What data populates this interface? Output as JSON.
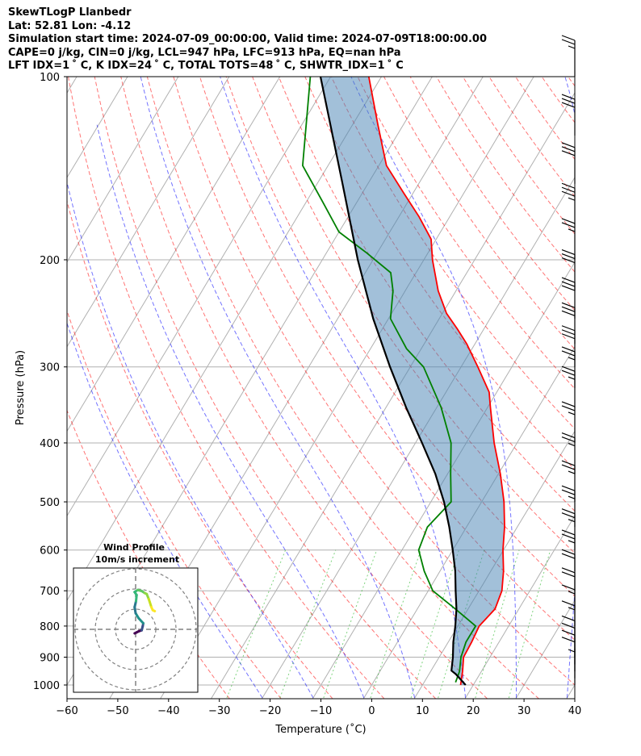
{
  "header": {
    "title": "SkewTLogP Llanbedr",
    "location": "Lat: 52.81   Lon: -4.12",
    "times": "Simulation start time: 2024-07-09_00:00:00, Valid time: 2024-07-09T18:00:00.00",
    "indices1": "CAPE=0 j/kg, CIN=0 j/kg, LCL=947 hPa, LFC=913 hPa, EQ=nan hPa",
    "indices2": "LFT IDX=1 ˚ C, K IDX=24 ˚ C, TOTAL TOTS=48 ˚ C, SHWTR_IDX=1 ˚ C"
  },
  "chart_data": {
    "type": "skewt",
    "title": "SkewTLogP Llanbedr",
    "xlabel": "Temperature (˚C)",
    "ylabel": "Pressure (hPa)",
    "xlim": [
      -60,
      40
    ],
    "ylim": [
      1050,
      100
    ],
    "x_ticks": [
      -60,
      -50,
      -40,
      -30,
      -20,
      -10,
      0,
      10,
      20,
      30,
      40
    ],
    "y_ticks": [
      1000,
      900,
      800,
      700,
      600,
      500,
      400,
      300,
      200,
      100
    ],
    "series": [
      {
        "name": "Temperature",
        "color": "#ff0000",
        "points": [
          [
            1000,
            17.5
          ],
          [
            950,
            16.3
          ],
          [
            900,
            14.8
          ],
          [
            850,
            14.6
          ],
          [
            800,
            14.2
          ],
          [
            750,
            15.3
          ],
          [
            700,
            14.5
          ],
          [
            650,
            12.5
          ],
          [
            600,
            9.9
          ],
          [
            550,
            7.5
          ],
          [
            500,
            4.4
          ],
          [
            450,
            0.4
          ],
          [
            400,
            -4.5
          ],
          [
            350,
            -9.4
          ],
          [
            330,
            -11.5
          ],
          [
            300,
            -16.7
          ],
          [
            275,
            -21.6
          ],
          [
            260,
            -25.2
          ],
          [
            245,
            -29.2
          ],
          [
            225,
            -33.5
          ],
          [
            200,
            -38.3
          ],
          [
            185,
            -41.0
          ],
          [
            170,
            -46.0
          ],
          [
            155,
            -52.0
          ],
          [
            140,
            -58.5
          ],
          [
            120,
            -65.0
          ],
          [
            100,
            -72.5
          ]
        ]
      },
      {
        "name": "Dewpoint",
        "color": "#008000",
        "points": [
          [
            990,
            16.2
          ],
          [
            950,
            15.7
          ],
          [
            900,
            14.3
          ],
          [
            850,
            13.5
          ],
          [
            800,
            13.5
          ],
          [
            750,
            7.5
          ],
          [
            700,
            0.9
          ],
          [
            650,
            -3.1
          ],
          [
            600,
            -6.7
          ],
          [
            550,
            -7.7
          ],
          [
            500,
            -6.0
          ],
          [
            450,
            -9.4
          ],
          [
            400,
            -13.0
          ],
          [
            350,
            -19.1
          ],
          [
            300,
            -27.4
          ],
          [
            280,
            -32.9
          ],
          [
            250,
            -39.6
          ],
          [
            225,
            -42.4
          ],
          [
            210,
            -45.0
          ],
          [
            195,
            -52.0
          ],
          [
            180,
            -60.0
          ],
          [
            160,
            -67.0
          ],
          [
            140,
            -75.0
          ],
          [
            100,
            -84.0
          ]
        ]
      },
      {
        "name": "Parcel profile",
        "color": "#000000",
        "points": [
          [
            1000,
            18.5
          ],
          [
            960,
            15.3
          ],
          [
            947,
            14.0
          ],
          [
            900,
            12.7
          ],
          [
            850,
            11.0
          ],
          [
            800,
            9.5
          ],
          [
            750,
            7.7
          ],
          [
            700,
            5.4
          ],
          [
            650,
            3.0
          ],
          [
            600,
            0.0
          ],
          [
            550,
            -3.4
          ],
          [
            500,
            -7.4
          ],
          [
            450,
            -12.4
          ],
          [
            400,
            -18.7
          ],
          [
            350,
            -26.0
          ],
          [
            300,
            -34.0
          ],
          [
            250,
            -43.0
          ],
          [
            200,
            -53.0
          ],
          [
            150,
            -65.0
          ],
          [
            100,
            -82.0
          ]
        ]
      }
    ],
    "wind_barbs": {
      "pressures": [
        1000,
        975,
        950,
        925,
        900,
        850,
        800,
        750,
        700,
        650,
        600,
        550,
        500,
        450,
        400,
        350,
        325,
        300,
        275,
        250,
        225,
        200,
        175,
        150,
        125,
        100
      ],
      "speed_kt": [
        7,
        9,
        10,
        11,
        12,
        14,
        15,
        18,
        20,
        23,
        25,
        26,
        25,
        24,
        25,
        26,
        27,
        28,
        30,
        29,
        28,
        27,
        33,
        32,
        29,
        27
      ]
    },
    "hodograph": {
      "title": "Wind Profile",
      "subtitle": "10m/s increment",
      "ring_speeds_ms": [
        10,
        20,
        30
      ],
      "points": [
        [
          -0.5,
          -2.0
        ],
        [
          0.5,
          -1.5
        ],
        [
          1.5,
          -1.0
        ],
        [
          3.0,
          -0.5
        ],
        [
          3.5,
          1.5
        ],
        [
          3.8,
          3.0
        ],
        [
          1.5,
          5.5
        ],
        [
          0.0,
          8.0
        ],
        [
          -0.5,
          11.0
        ],
        [
          0.2,
          14.0
        ],
        [
          0.5,
          17.0
        ],
        [
          -0.5,
          18.5
        ],
        [
          1.0,
          19.5
        ],
        [
          3.0,
          19.0
        ],
        [
          4.5,
          18.0
        ],
        [
          5.5,
          17.5
        ],
        [
          6.5,
          15.0
        ],
        [
          7.0,
          13.5
        ],
        [
          7.8,
          11.0
        ],
        [
          8.5,
          9.5
        ],
        [
          9.5,
          9.0
        ]
      ]
    }
  }
}
